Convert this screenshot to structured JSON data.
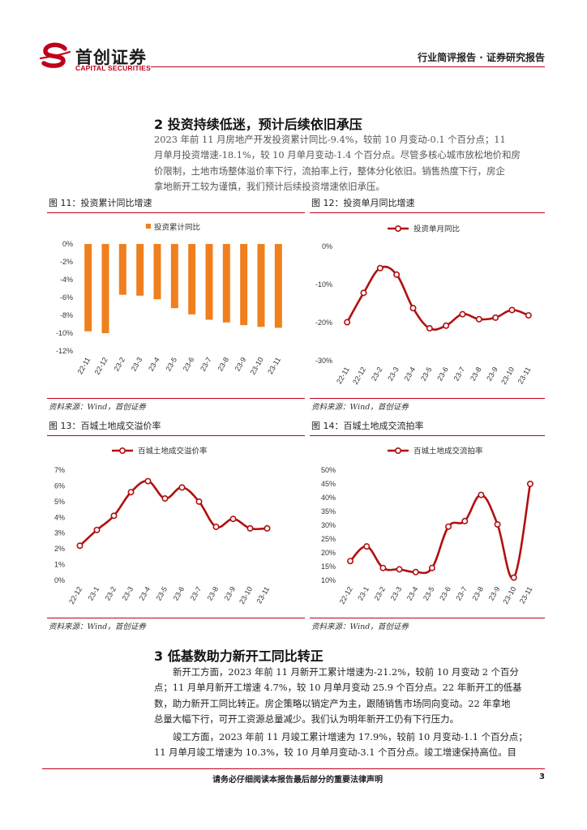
{
  "header": {
    "logo_cn": "首创证券",
    "logo_en": "CAPITAL SECURITIES",
    "right_text": "行业简评报告 · 证券研究报告",
    "colors": {
      "brand": "#c0001a"
    }
  },
  "section2": {
    "heading": "2 投资持续低迷，预计后续依旧承压",
    "lines": [
      "2023 年前 11 月房地产开发投资累计同比-9.4%，较前 10 月变动-0.1 个百分点；11",
      "月单月投资增速-18.1%，较 10 月单月变动-1.4 个百分点。尽管多核心城市放松地价和房",
      "价限制，土地市场整体溢价率下行，流拍率上行，整体分化依旧。销售热度下行，房企",
      "拿地新开工较为谨慎，我们预计后续投资增速依旧承压。"
    ]
  },
  "figures": {
    "fig11": {
      "title": "图  11：投资累计同比增速",
      "source": "资料来源：Wind，首创证券"
    },
    "fig12": {
      "title": "图  12：投资单月同比增速",
      "source": "资料来源：Wind，首创证券"
    },
    "fig13": {
      "title": "图  13：百城土地成交溢价率",
      "source": "资料来源：Wind，首创证券"
    },
    "fig14": {
      "title": "图  14：百城土地成交流拍率",
      "source": "资料来源：Wind，首创证券"
    }
  },
  "chart_data": [
    {
      "id": "fig11",
      "type": "bar",
      "legend": "投资累计同比",
      "categories": [
        "22-11",
        "22-12",
        "23-2",
        "23-3",
        "23-4",
        "23-5",
        "23-6",
        "23-7",
        "23-8",
        "23-9",
        "23-10",
        "23-11"
      ],
      "values": [
        -9.8,
        -10.0,
        -5.7,
        -5.8,
        -6.2,
        -7.2,
        -7.9,
        -8.5,
        -8.8,
        -9.1,
        -9.3,
        -9.4
      ],
      "yticks": [
        "0%",
        "-2%",
        "-4%",
        "-6%",
        "-8%",
        "-10%",
        "-12%"
      ],
      "ylim": [
        -12,
        0
      ],
      "color": "#f07f1e"
    },
    {
      "id": "fig12",
      "type": "line",
      "legend": "投资单月同比",
      "categories": [
        "22-11",
        "22-12",
        "23-2",
        "23-3",
        "23-4",
        "23-5",
        "23-6",
        "23-7",
        "23-8",
        "23-9",
        "23-10",
        "23-11"
      ],
      "values": [
        -19.9,
        -12.2,
        -5.7,
        -7.4,
        -16.2,
        -21.5,
        -20.8,
        -17.8,
        -19.1,
        -18.7,
        -16.7,
        -18.1
      ],
      "yticks": [
        "0%",
        "-10%",
        "-20%",
        "-30%"
      ],
      "ylim": [
        -30,
        0
      ],
      "color": "#b01010"
    },
    {
      "id": "fig13",
      "type": "line",
      "legend": "百城土地成交溢价率",
      "categories": [
        "22-12",
        "23-1",
        "23-2",
        "23-3",
        "23-4",
        "23-5",
        "23-6",
        "23-7",
        "23-8",
        "23-9",
        "23-10",
        "23-11"
      ],
      "values": [
        2.2,
        3.2,
        4.1,
        5.6,
        6.3,
        5.2,
        5.9,
        5.0,
        3.4,
        3.9,
        3.3,
        3.3
      ],
      "yticks": [
        "7%",
        "6%",
        "5%",
        "4%",
        "3%",
        "2%",
        "1%",
        "0%"
      ],
      "ylim": [
        0,
        7
      ],
      "color": "#b01010"
    },
    {
      "id": "fig14",
      "type": "line",
      "legend": "百城土地成交流拍率",
      "categories": [
        "22-12",
        "23-1",
        "23-2",
        "23-3",
        "23-4",
        "23-5",
        "23-6",
        "23-7",
        "23-8",
        "23-9",
        "23-10",
        "23-11"
      ],
      "values": [
        17.0,
        22.3,
        14.5,
        14.0,
        13.0,
        14.5,
        29.5,
        31.5,
        41.0,
        30.3,
        11.0,
        45.0
      ],
      "yticks": [
        "50%",
        "45%",
        "40%",
        "35%",
        "30%",
        "25%",
        "20%",
        "15%",
        "10%"
      ],
      "ylim": [
        10,
        50
      ],
      "color": "#b01010"
    }
  ],
  "section3": {
    "heading": "3 低基数助力新开工同比转正",
    "para1": [
      "新开工方面，2023 年前 11 月新开工累计增速为-21.2%，较前 10 月变动 2 个百分",
      "点；11 月单月新开工增速 4.7%，较 10 月单月变动 25.9 个百分点。22 年新开工的低基",
      "数，助力新开工同比转正。房企策略以销定产为主，跟随销售市场同向变动。22 年拿地",
      "总量大幅下行，可开工资源总量减少。我们认为明年新开工仍有下行压力。"
    ],
    "para2": [
      "竣工方面，2023 年前 11 月竣工累计增速为 17.9%，较前 10 月变动-1.1 个百分点；",
      "11 月单月竣工增速为 10.3%，较 10 月单月变动-3.1 个百分点。竣工增速保持高位。目"
    ]
  },
  "footer": {
    "disclaimer": "请务必仔细阅读本报告最后部分的重要法律声明",
    "page_number": "3"
  }
}
